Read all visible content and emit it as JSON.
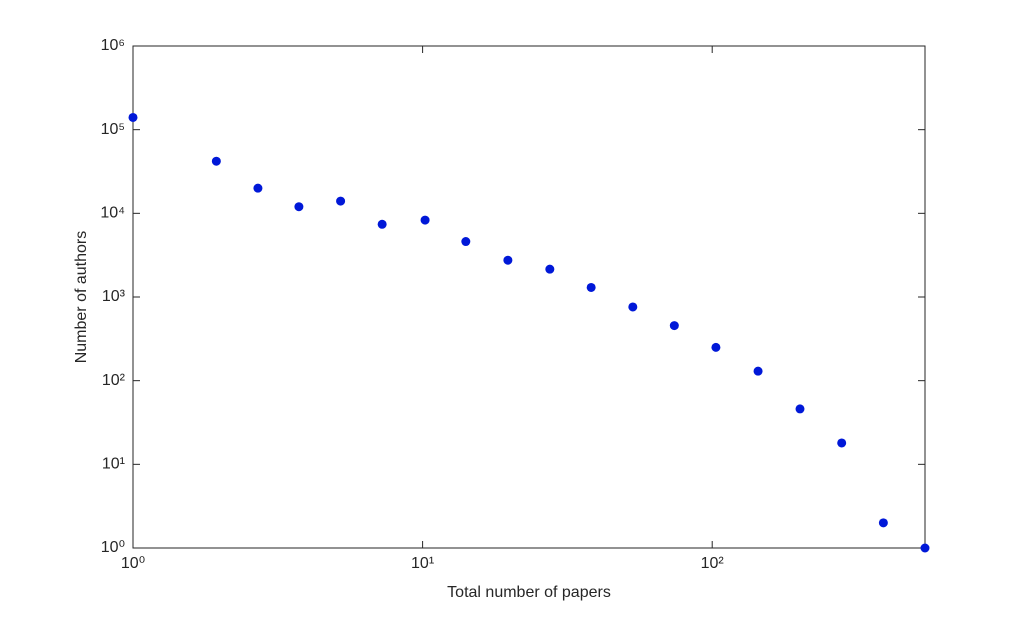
{
  "chart_data": {
    "type": "scatter",
    "xlabel": "Total number of papers",
    "ylabel": "Number of authors",
    "xscale": "log",
    "yscale": "log",
    "color": "#0018d8",
    "x": [
      1,
      1.94,
      2.7,
      3.74,
      5.21,
      7.25,
      10.2,
      14.1,
      19.7,
      27.5,
      38.2,
      53.2,
      74,
      103,
      144,
      201,
      280,
      390,
      543
    ],
    "values": [
      140000,
      42000,
      20000,
      12000,
      14000,
      7400,
      8300,
      4600,
      2750,
      2150,
      1300,
      760,
      455,
      250,
      130,
      46,
      18,
      2,
      1
    ],
    "xlim": [
      1,
      543
    ],
    "ylim": [
      1,
      1000000
    ],
    "xticks": [
      {
        "value": 1,
        "label": "10⁰"
      },
      {
        "value": 10,
        "label": "10¹"
      },
      {
        "value": 100,
        "label": "10²"
      }
    ],
    "yticks": [
      {
        "value": 1,
        "label": "10⁰"
      },
      {
        "value": 10,
        "label": "10¹"
      },
      {
        "value": 100,
        "label": "10²"
      },
      {
        "value": 1000,
        "label": "10³"
      },
      {
        "value": 10000,
        "label": "10⁴"
      },
      {
        "value": 100000,
        "label": "10⁵"
      },
      {
        "value": 1000000,
        "label": "10⁶"
      }
    ]
  }
}
